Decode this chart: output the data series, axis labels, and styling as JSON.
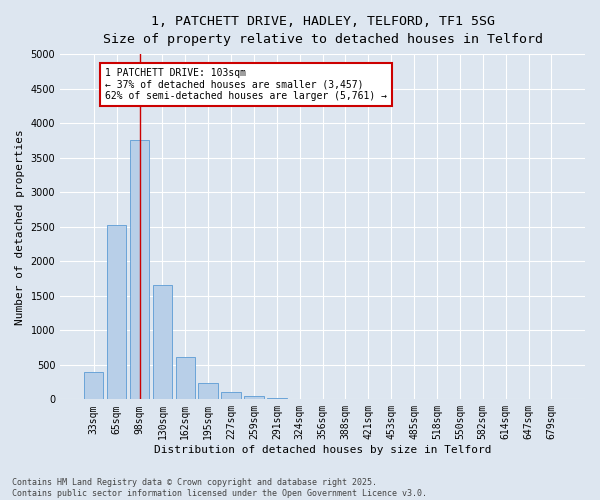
{
  "title_line1": "1, PATCHETT DRIVE, HADLEY, TELFORD, TF1 5SG",
  "title_line2": "Size of property relative to detached houses in Telford",
  "xlabel": "Distribution of detached houses by size in Telford",
  "ylabel": "Number of detached properties",
  "categories": [
    "33sqm",
    "65sqm",
    "98sqm",
    "130sqm",
    "162sqm",
    "195sqm",
    "227sqm",
    "259sqm",
    "291sqm",
    "324sqm",
    "356sqm",
    "388sqm",
    "421sqm",
    "453sqm",
    "485sqm",
    "518sqm",
    "550sqm",
    "582sqm",
    "614sqm",
    "647sqm",
    "679sqm"
  ],
  "values": [
    390,
    2530,
    3760,
    1650,
    610,
    230,
    105,
    50,
    25,
    10,
    5,
    0,
    0,
    0,
    0,
    0,
    0,
    0,
    0,
    0,
    0
  ],
  "bar_color": "#b8cfe8",
  "bar_edge_color": "#5b9bd5",
  "vline_x_index": 2.0,
  "vline_color": "#cc0000",
  "annotation_text": "1 PATCHETT DRIVE: 103sqm\n← 37% of detached houses are smaller (3,457)\n62% of semi-detached houses are larger (5,761) →",
  "annotation_box_edgecolor": "#cc0000",
  "annotation_box_facecolor": "#ffffff",
  "ylim": [
    0,
    5000
  ],
  "yticks": [
    0,
    500,
    1000,
    1500,
    2000,
    2500,
    3000,
    3500,
    4000,
    4500,
    5000
  ],
  "background_color": "#dde6f0",
  "grid_color": "#ffffff",
  "footnote": "Contains HM Land Registry data © Crown copyright and database right 2025.\nContains public sector information licensed under the Open Government Licence v3.0.",
  "title_fontsize": 9.5,
  "subtitle_fontsize": 8.5,
  "axis_label_fontsize": 8,
  "tick_fontsize": 7,
  "annotation_fontsize": 7,
  "footnote_fontsize": 6
}
